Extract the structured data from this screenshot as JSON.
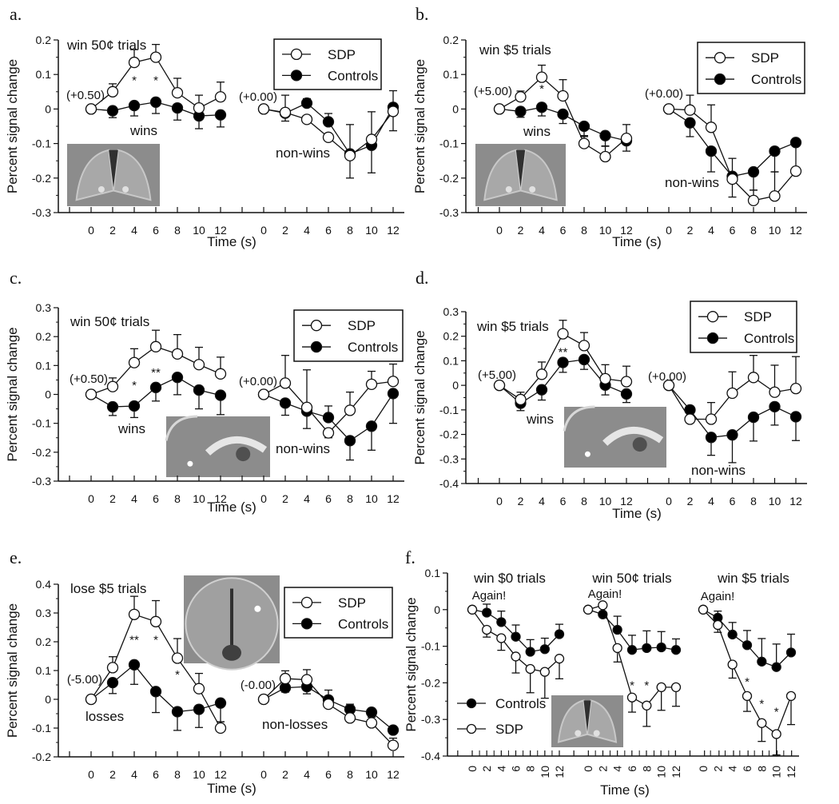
{
  "colors": {
    "line": "#111111",
    "sdp_fill": "#ffffff",
    "controls_fill": "#000000",
    "inset_bg": "#9a9a9a"
  },
  "legend": {
    "sdp": "SDP",
    "controls": "Controls"
  },
  "chart_data": [
    {
      "type": "line",
      "label": "a.",
      "ylabel": "Percent signal change",
      "xlabel": "Time (s)",
      "ylim": [
        -0.3,
        0.2
      ],
      "yticks": [
        0.2,
        0.1,
        0,
        -0.1,
        -0.2,
        -0.3
      ],
      "ytick_labels": [
        "0.2",
        "0.1",
        "0",
        "-0.1",
        "-0.2",
        "-0.3"
      ],
      "xticks": [
        0,
        2,
        4,
        6,
        8,
        10,
        12
      ],
      "xtick_labels": [
        "0",
        "2",
        "4",
        "6",
        "8",
        "10",
        "12"
      ],
      "legend_position": "top-right",
      "legend_order": [
        "sdp",
        "controls"
      ],
      "subplots": [
        {
          "title": "win 50¢ trials",
          "baseline": "(+0.50)",
          "condition": "wins",
          "sdp": [
            0,
            0.05,
            0.135,
            0.15,
            0.047,
            0.003,
            0.035
          ],
          "sdp_err": [
            0,
            0.023,
            0.037,
            0.037,
            0.042,
            0.037,
            0.043
          ],
          "controls": [
            0,
            -0.005,
            0.01,
            0.02,
            0.003,
            -0.02,
            -0.017
          ],
          "controls_err": [
            0,
            -0.02,
            -0.03,
            -0.033,
            -0.035,
            -0.037,
            -0.035
          ],
          "stars": [
            {
              "x": 4,
              "y": 0.09,
              "text": "*"
            },
            {
              "x": 6,
              "y": 0.09,
              "text": "*"
            }
          ]
        },
        {
          "title": "",
          "baseline": "(+0.00)",
          "condition": "non-wins",
          "sdp": [
            0,
            -0.01,
            -0.03,
            -0.082,
            -0.135,
            -0.088,
            -0.007
          ],
          "sdp_err": [
            0,
            0.05,
            0,
            0,
            0.09,
            0.08,
            -0.056
          ],
          "controls": [
            0,
            -0.012,
            0.017,
            -0.037,
            -0.13,
            -0.105,
            0.005
          ],
          "controls_err": [
            0,
            -0.023,
            0.013,
            0.024,
            -0.07,
            -0.08,
            0.048
          ],
          "stars": []
        }
      ]
    },
    {
      "type": "line",
      "label": "b.",
      "ylabel": "Percent signal change",
      "xlabel": "Time (s)",
      "ylim": [
        -0.3,
        0.2
      ],
      "yticks": [
        0.2,
        0.1,
        0,
        -0.1,
        -0.2,
        -0.3
      ],
      "ytick_labels": [
        "0.2",
        "0.1",
        "0",
        "-0.1",
        "-0.2",
        "-0.3"
      ],
      "xticks": [
        0,
        2,
        4,
        6,
        8,
        10,
        12
      ],
      "xtick_labels": [
        "0",
        "2",
        "4",
        "6",
        "8",
        "10",
        "12"
      ],
      "legend_position": "top-right",
      "legend_order": [
        "sdp",
        "controls"
      ],
      "subplots": [
        {
          "title": "win $5 trials",
          "baseline": "(+5.00)",
          "condition": "wins",
          "sdp": [
            0,
            0.035,
            0.092,
            0.038,
            -0.1,
            -0.138,
            -0.085
          ],
          "sdp_err": [
            0,
            0.017,
            0.035,
            0.047,
            0.023,
            0.03,
            0.04
          ],
          "controls": [
            0,
            -0.007,
            0.005,
            -0.015,
            -0.05,
            -0.077,
            -0.092
          ],
          "controls_err": [
            0,
            -0.017,
            -0.025,
            -0.027,
            -0.03,
            -0.03,
            -0.03
          ],
          "stars": [
            {
              "x": 4,
              "y": 0.066,
              "text": "*"
            }
          ]
        },
        {
          "title": "",
          "baseline": "(+0.00)",
          "condition": "non-wins",
          "sdp": [
            0,
            -0.003,
            -0.053,
            -0.203,
            -0.265,
            -0.252,
            -0.18
          ],
          "sdp_err": [
            0,
            0.043,
            0.065,
            0.06,
            0.03,
            0.07,
            0.0
          ],
          "controls": [
            0,
            -0.04,
            -0.122,
            -0.195,
            -0.182,
            -0.122,
            -0.097
          ],
          "controls_err": [
            0,
            -0.04,
            -0.06,
            -0.06,
            -0.053,
            -0.06,
            -0.08
          ],
          "stars": []
        }
      ]
    },
    {
      "type": "line",
      "label": "c.",
      "ylabel": "Percent signal change",
      "xlabel": "Time (s)",
      "ylim": [
        -0.3,
        0.3
      ],
      "yticks": [
        0.3,
        0.2,
        0.1,
        0,
        -0.1,
        -0.2,
        -0.3
      ],
      "ytick_labels": [
        "0.3",
        "0.2",
        "0.1",
        "0",
        "-0.1",
        "-0.2",
        "-0.3"
      ],
      "xticks": [
        0,
        2,
        4,
        6,
        8,
        10,
        12
      ],
      "xtick_labels": [
        "0",
        "2",
        "4",
        "6",
        "8",
        "10",
        "12"
      ],
      "legend_position": "top-right",
      "legend_order": [
        "sdp",
        "controls"
      ],
      "subplots": [
        {
          "title": "win 50¢ trials",
          "baseline": "(+0.50)",
          "condition": "wins",
          "sdp": [
            0,
            0.027,
            0.11,
            0.165,
            0.14,
            0.103,
            0.071
          ],
          "sdp_err": [
            0,
            0.03,
            0.048,
            0.057,
            0.067,
            0.06,
            0.058
          ],
          "controls": [
            0,
            -0.043,
            -0.04,
            0.024,
            0.059,
            0.015,
            -0.003
          ],
          "controls_err": [
            0,
            -0.03,
            -0.04,
            -0.047,
            -0.06,
            -0.065,
            -0.067
          ],
          "stars": [
            {
              "x": 4,
              "y": 0.04,
              "text": "*"
            },
            {
              "x": 6,
              "y": 0.085,
              "text": "**"
            }
          ]
        },
        {
          "title": "",
          "baseline": "(+0.00)",
          "condition": "non-wins",
          "sdp": [
            0,
            0.039,
            -0.045,
            -0.133,
            -0.055,
            0.035,
            0.045
          ],
          "sdp_err": [
            0,
            0.096,
            0.13,
            -0.017,
            0.063,
            0.045,
            0.06
          ],
          "controls": [
            0,
            -0.03,
            -0.058,
            -0.08,
            -0.16,
            -0.11,
            0.003
          ],
          "controls_err": [
            0,
            -0.042,
            -0.06,
            0.04,
            -0.067,
            -0.083,
            -0.103
          ],
          "stars": []
        }
      ]
    },
    {
      "type": "line",
      "label": "d.",
      "ylabel": "Percent signal change",
      "xlabel": "Time (s)",
      "ylim": [
        -0.4,
        0.3
      ],
      "yticks": [
        0.3,
        0.2,
        0.1,
        0,
        -0.1,
        -0.2,
        -0.3,
        -0.4
      ],
      "ytick_labels": [
        "0.3",
        "0.2",
        "0.1",
        "0",
        "-0.1",
        "-0.2",
        "-0.3",
        "-0.4"
      ],
      "xticks": [
        0,
        2,
        4,
        6,
        8,
        10,
        12
      ],
      "xtick_labels": [
        "0",
        "2",
        "4",
        "6",
        "8",
        "10",
        "12"
      ],
      "legend_position": "top-right",
      "legend_order": [
        "sdp",
        "controls"
      ],
      "subplots": [
        {
          "title": "win $5 trials",
          "baseline": "(+5.00)",
          "condition": "wins",
          "sdp": [
            0,
            -0.058,
            0.045,
            0.21,
            0.162,
            0.027,
            0.015
          ],
          "sdp_err": [
            0,
            0.03,
            0.05,
            0.055,
            0.053,
            0.057,
            0.063
          ],
          "controls": [
            0,
            -0.073,
            -0.018,
            0.093,
            0.105,
            0.001,
            -0.035
          ],
          "controls_err": [
            0,
            -0.03,
            -0.042,
            -0.04,
            -0.04,
            -0.04,
            -0.035
          ],
          "stars": [
            {
              "x": 6,
              "y": 0.145,
              "text": "**"
            }
          ]
        },
        {
          "title": "",
          "baseline": "(+0.00)",
          "condition": "non-wins",
          "sdp": [
            0,
            -0.138,
            -0.138,
            -0.032,
            0.032,
            -0.028,
            -0.013
          ],
          "sdp_err": [
            0,
            0,
            0.068,
            0.087,
            0.09,
            0.11,
            0.13
          ],
          "controls": [
            0,
            -0.1,
            -0.212,
            -0.202,
            -0.13,
            -0.087,
            -0.128
          ],
          "controls_err": [
            0,
            0.015,
            -0.073,
            -0.113,
            -0.097,
            -0.075,
            -0.097
          ],
          "stars": []
        }
      ]
    },
    {
      "type": "line",
      "label": "e.",
      "ylabel": "Percent signal change",
      "xlabel": "Time (s)",
      "ylim": [
        -0.2,
        0.4
      ],
      "yticks": [
        0.4,
        0.3,
        0.2,
        0.1,
        0,
        -0.1,
        -0.2
      ],
      "ytick_labels": [
        "0.4",
        "0.3",
        "0.2",
        "0.1",
        "0",
        "-0.1",
        "-0.2"
      ],
      "xticks": [
        0,
        2,
        4,
        6,
        8,
        10,
        12
      ],
      "xtick_labels": [
        "0",
        "2",
        "4",
        "6",
        "8",
        "10",
        "12"
      ],
      "legend_position": "top-right",
      "legend_order": [
        "sdp",
        "controls"
      ],
      "subplots": [
        {
          "title": "lose $5 trials",
          "baseline": "(-5.00)",
          "condition": "losses",
          "sdp": [
            0,
            0.11,
            0.295,
            0.27,
            0.143,
            0.037,
            -0.1
          ],
          "sdp_err": [
            0,
            0.038,
            0.063,
            0.073,
            0.068,
            0.053,
            0.022
          ],
          "controls": [
            0,
            0.058,
            0.12,
            0.027,
            -0.043,
            -0.035,
            -0.013
          ],
          "controls_err": [
            0,
            -0.038,
            -0.068,
            -0.073,
            -0.065,
            -0.063,
            -0.065
          ],
          "stars": [
            {
              "x": 4,
              "y": 0.215,
              "text": "**"
            },
            {
              "x": 6,
              "y": 0.215,
              "text": "*"
            },
            {
              "x": 8,
              "y": 0.095,
              "text": "*"
            }
          ]
        },
        {
          "title": "",
          "baseline": "(-0.00)",
          "condition": "non-losses",
          "sdp": [
            0,
            0.072,
            0.068,
            -0.017,
            -0.065,
            -0.082,
            -0.16
          ],
          "sdp_err": [
            0,
            0.027,
            0.035,
            0.049,
            0,
            0.02,
            0.025
          ],
          "controls": [
            0,
            0.04,
            0.044,
            -0.002,
            -0.035,
            -0.045,
            -0.107
          ],
          "controls_err": [
            0,
            -0.015,
            -0.025,
            0,
            0.018,
            0,
            0
          ],
          "stars": []
        }
      ]
    },
    {
      "type": "line",
      "label": "f.",
      "ylabel": "Percent signal change",
      "xlabel": "Time (s)",
      "ylim": [
        -0.4,
        0.1
      ],
      "yticks": [
        0.1,
        0,
        -0.1,
        -0.2,
        -0.3,
        -0.4
      ],
      "ytick_labels": [
        "0.1",
        "0",
        "-0.1",
        "-0.2",
        "-0.3",
        "-0.4"
      ],
      "xticks": [
        0,
        2,
        4,
        6,
        8,
        10,
        12
      ],
      "xtick_labels": [
        "0",
        "2",
        "4",
        "6",
        "8",
        "10",
        "12"
      ],
      "legend_position": "bottom-left",
      "legend_order": [
        "controls",
        "sdp"
      ],
      "subplots": [
        {
          "title": "win $0 trials",
          "baseline": "Again!",
          "condition": "",
          "sdp": [
            0,
            -0.055,
            -0.078,
            -0.128,
            -0.162,
            -0.17,
            -0.134
          ],
          "sdp_err": [
            0,
            -0.02,
            -0.033,
            -0.045,
            -0.065,
            -0.072,
            -0.055
          ],
          "controls": [
            0,
            -0.008,
            -0.034,
            -0.074,
            -0.115,
            -0.108,
            -0.067
          ],
          "controls_err": [
            0,
            0.023,
            0.03,
            0.032,
            0.033,
            0.03,
            0.027
          ],
          "stars": []
        },
        {
          "title": "win 50¢ trials",
          "baseline": "Again!",
          "condition": "",
          "sdp": [
            0,
            0.012,
            -0.105,
            -0.24,
            -0.262,
            -0.212,
            -0.212
          ],
          "sdp_err": [
            0,
            0,
            -0.038,
            -0.04,
            -0.057,
            -0.063,
            -0.052
          ],
          "controls": [
            0,
            -0.013,
            -0.055,
            -0.11,
            -0.105,
            -0.103,
            -0.11
          ],
          "controls_err": [
            0,
            0,
            0.037,
            0.04,
            0.047,
            0.043,
            0.03
          ],
          "stars": [
            {
              "x": 6,
              "y": -0.2,
              "text": "*"
            },
            {
              "x": 8,
              "y": -0.2,
              "text": "*"
            }
          ]
        },
        {
          "title": "win $5 trials",
          "baseline": "Again!",
          "condition": "",
          "sdp": [
            0,
            -0.042,
            -0.15,
            -0.236,
            -0.31,
            -0.34,
            -0.236
          ],
          "sdp_err": [
            0,
            -0.02,
            -0.037,
            -0.042,
            -0.05,
            -0.057,
            -0.078
          ],
          "controls": [
            0,
            -0.022,
            -0.068,
            -0.097,
            -0.142,
            -0.157,
            -0.117
          ],
          "controls_err": [
            0,
            0.018,
            0.033,
            0.04,
            0.063,
            0.063,
            0.05
          ],
          "stars": [
            {
              "x": 6,
              "y": -0.19,
              "text": "*"
            },
            {
              "x": 8,
              "y": -0.25,
              "text": "*"
            },
            {
              "x": 10,
              "y": -0.272,
              "text": "*"
            }
          ]
        }
      ]
    }
  ]
}
